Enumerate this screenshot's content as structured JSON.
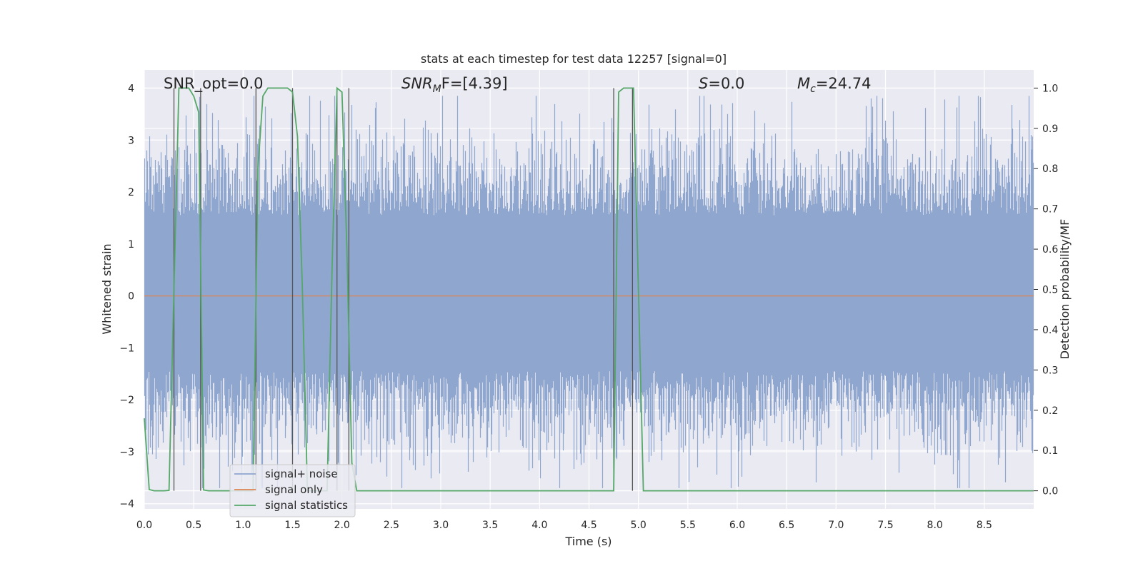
{
  "chart_data": {
    "type": "line",
    "title": "stats at each timestep for test data 12257 [signal=0]",
    "xlabel": "Time (s)",
    "ylabel": "Whitened strain",
    "ylabel_right": "Detection probability/MF",
    "xlim": [
      0,
      9
    ],
    "ylim": [
      -4.1,
      4.35
    ],
    "ylim_right": [
      -0.045,
      1.045
    ],
    "grid": true,
    "x_ticks": [
      "0.0",
      "0.5",
      "1.0",
      "1.5",
      "2.0",
      "2.5",
      "3.0",
      "3.5",
      "4.0",
      "4.5",
      "5.0",
      "5.5",
      "6.0",
      "6.5",
      "7.0",
      "7.5",
      "8.0",
      "8.5"
    ],
    "y_ticks": [
      "4",
      "3",
      "2",
      "1",
      "0",
      "−1",
      "−2",
      "−3",
      "−4"
    ],
    "y_ticks_right": [
      "1.0",
      "0.9",
      "0.8",
      "0.7",
      "0.6",
      "0.5",
      "0.4",
      "0.3",
      "0.2",
      "0.1",
      "0.0"
    ],
    "annotations": {
      "snr_opt": "SNR_opt=0.0",
      "snr_mf_sym": "SNR",
      "snr_mf_sub": "M",
      "snr_mf_rest": "F=[4.39]",
      "s_sym": "S",
      "s_rest": "=0.0",
      "mc_sym": "M",
      "mc_sub": "c",
      "mc_rest": "=24.74"
    },
    "legend": {
      "placement": "lower-left",
      "entries": [
        "signal+ noise",
        "signal only",
        "signal statistics"
      ]
    },
    "colors": {
      "noise": "#8fa6cf",
      "signal": "#dd8452",
      "stats": "#55a868",
      "markers": "#555555",
      "background": "#eaeaf2"
    },
    "series": [
      {
        "name": "signal+ noise",
        "kind": "noise",
        "amplitude_range": [
          -3.7,
          3.85
        ]
      },
      {
        "name": "signal only",
        "x": [
          0,
          9
        ],
        "y": [
          0,
          0
        ]
      },
      {
        "name": "signal statistics",
        "x": [
          0.0,
          0.05,
          0.1,
          0.2,
          0.25,
          0.3,
          0.35,
          0.45,
          0.5,
          0.55,
          0.6,
          0.65,
          0.7,
          1.1,
          1.15,
          1.2,
          1.25,
          1.45,
          1.5,
          1.55,
          1.6,
          1.65,
          1.85,
          1.9,
          1.95,
          2.0,
          2.05,
          2.1,
          2.15,
          2.2,
          4.7,
          4.75,
          4.8,
          4.85,
          4.95,
          5.0,
          5.05,
          5.1,
          9.0
        ],
        "y": [
          0.18,
          0.003,
          0.0,
          0.0,
          0.001,
          0.5,
          1.0,
          1.0,
          0.98,
          0.94,
          0.002,
          0.0,
          0.0,
          0.0,
          0.8,
          0.98,
          1.0,
          1.0,
          0.99,
          0.88,
          0.5,
          0.0,
          0.0,
          0.55,
          1.0,
          0.99,
          0.6,
          0.07,
          0.0,
          0.0,
          0.0,
          0.0,
          0.99,
          1.0,
          1.0,
          0.5,
          0.0,
          0.0,
          0.0
        ]
      }
    ],
    "markers": {
      "x": [
        0.3,
        0.57,
        1.13,
        1.5,
        1.95,
        2.07,
        4.75,
        4.94
      ],
      "y_top": [
        1.0,
        1.0,
        1.0,
        1.0,
        1.0,
        1.0,
        1.0,
        1.0
      ],
      "y_bottom": [
        0.0,
        0.0,
        0.0,
        0.0,
        0.0,
        0.0,
        0.0,
        0.0
      ]
    }
  }
}
